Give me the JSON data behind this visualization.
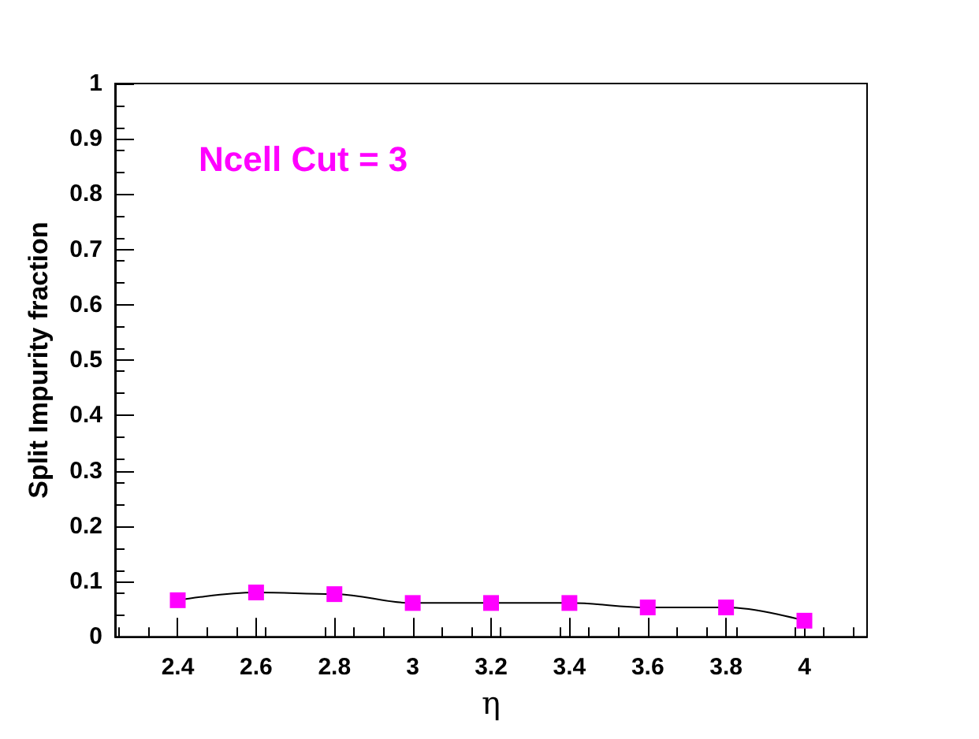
{
  "chart_data": {
    "type": "line",
    "xlabel": "η",
    "ylabel": "Split Impurity fraction",
    "annotations": [
      "Ncell Cut = 3"
    ],
    "x": [
      2.4,
      2.6,
      2.8,
      3,
      3.2,
      3.4,
      3.6,
      3.8,
      4
    ],
    "series": [
      {
        "color": "#ff00ff",
        "values": [
          0.066,
          0.08,
          0.077,
          0.061,
          0.061,
          0.061,
          0.053,
          0.053,
          0.029
        ]
      }
    ],
    "xlim": [
      2.24,
      4.16
    ],
    "xticks": [
      2.4,
      2.6,
      2.8,
      3,
      3.2,
      3.4,
      3.6,
      3.8,
      4
    ],
    "ylim": [
      0,
      1
    ],
    "yticks": [
      0,
      0.1,
      0.2,
      0.3,
      0.4,
      0.5,
      0.6,
      0.7,
      0.8,
      0.9,
      1
    ],
    "marker": "square",
    "line_style": "solid"
  }
}
